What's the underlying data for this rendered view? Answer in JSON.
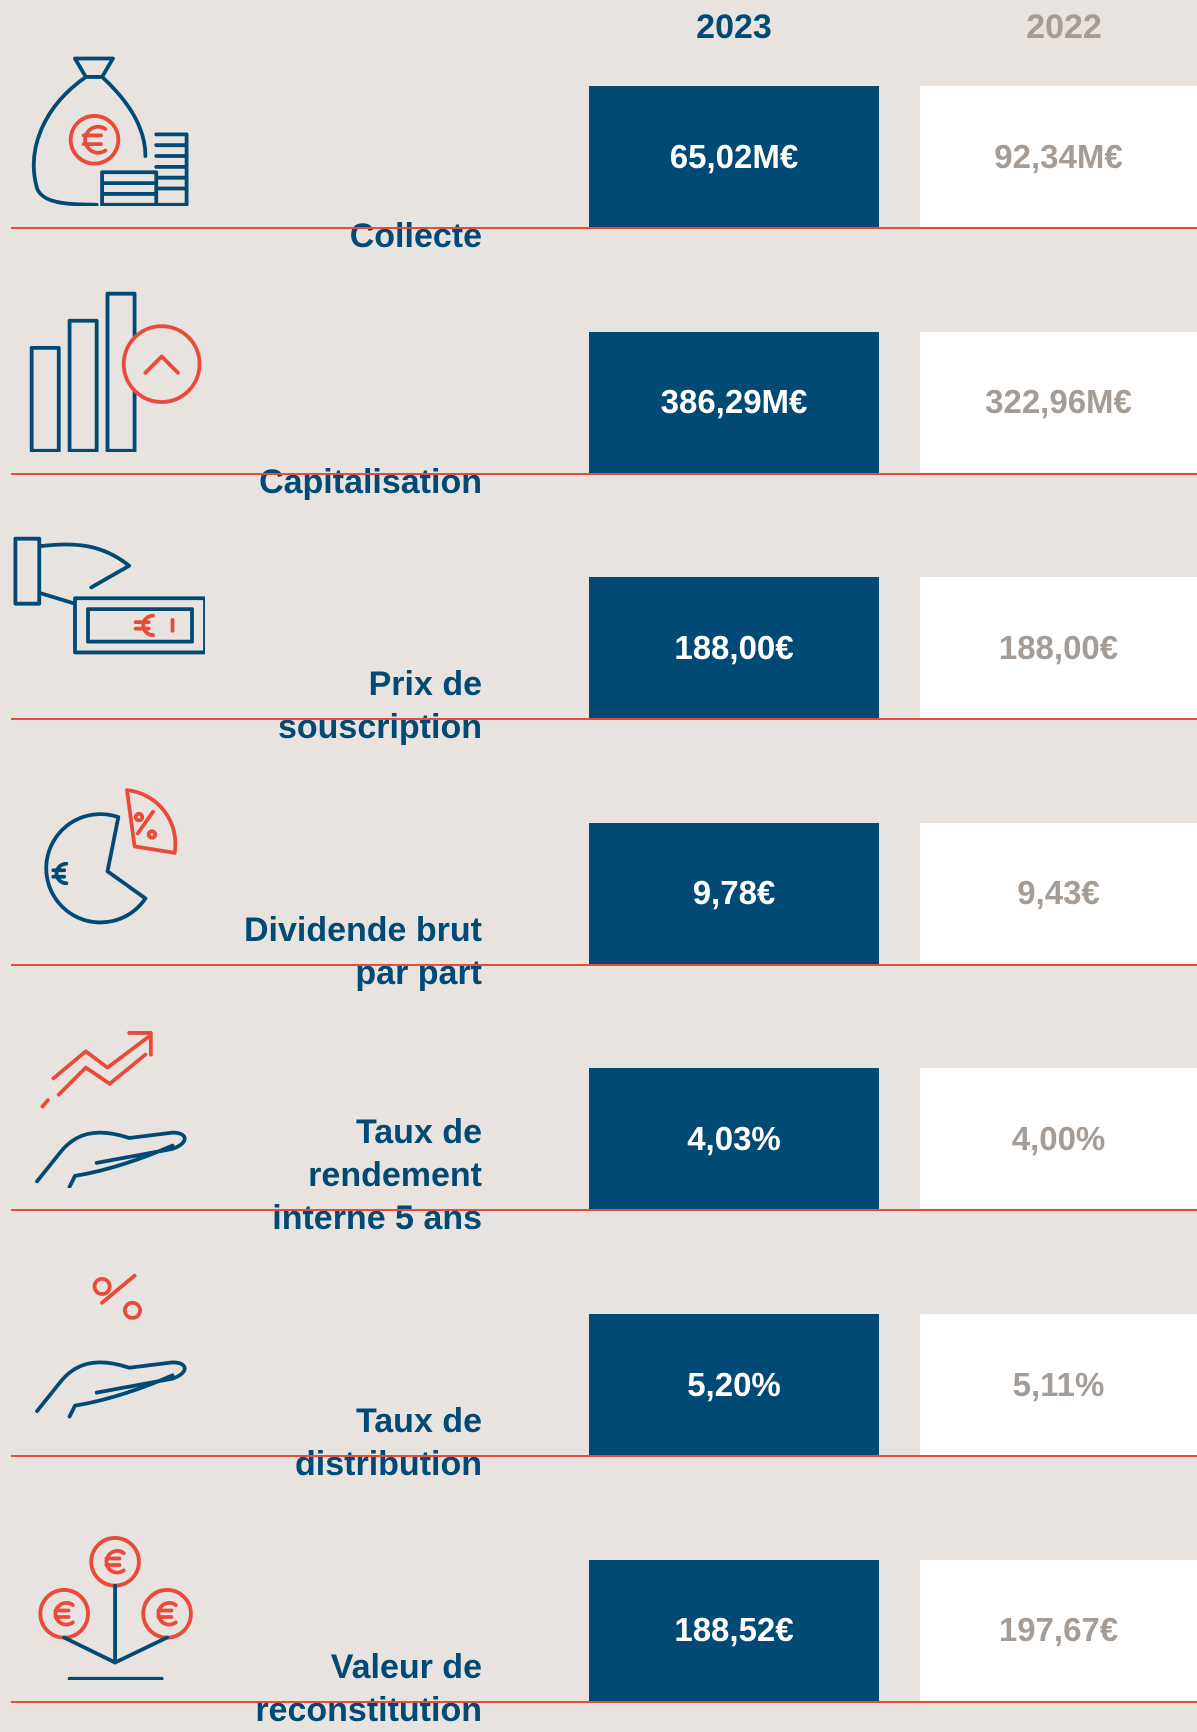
{
  "header": {
    "col_current": "2023",
    "col_previous": "2022"
  },
  "rows": [
    {
      "label_lines": [
        "Collecte"
      ],
      "current": "65,02M€",
      "previous": "92,34M€"
    },
    {
      "label_lines": [
        "Capitalisation"
      ],
      "current": "386,29M€",
      "previous": "322,96M€"
    },
    {
      "label_lines": [
        "Prix de",
        "souscription"
      ],
      "current": "188,00€",
      "previous": "188,00€"
    },
    {
      "label_lines": [
        "Dividende brut",
        "par part"
      ],
      "current": "9,78€",
      "previous": "9,43€"
    },
    {
      "label_lines": [
        "Taux de",
        "rendement",
        "interne 5 ans"
      ],
      "current": "4,03%",
      "previous": "4,00%"
    },
    {
      "label_lines": [
        "Taux de",
        "distribution"
      ],
      "current": "5,20%",
      "previous": "5,11%"
    },
    {
      "label_lines": [
        "Valeur de",
        "reconstitution"
      ],
      "current": "188,52€",
      "previous": "197,67€"
    }
  ]
}
